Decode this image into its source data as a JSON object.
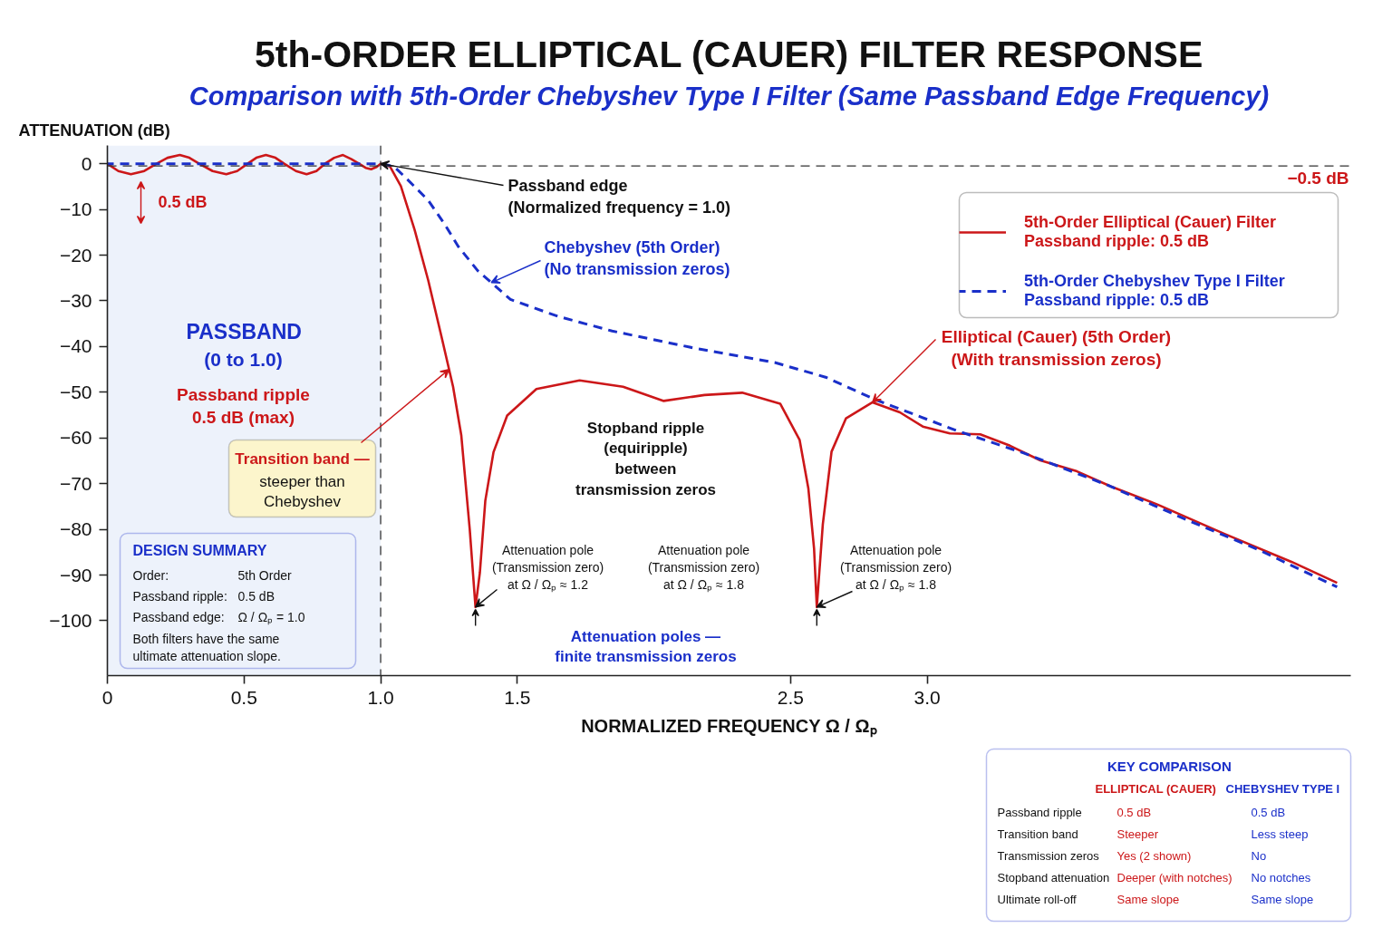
{
  "chart_data": {
    "type": "line",
    "title": "5th-ORDER ELLIPTICAL (CAUER) FILTER RESPONSE",
    "subtitle": "Comparison with 5th-Order Chebyshev Type I Filter (Same Passband Edge Frequency)",
    "xlabel": "NORMALIZED FREQUENCY Ω / Ωₚ",
    "ylabel": "ATTENUATION (dB)",
    "xlim": [
      0,
      4.55
    ],
    "ylim": [
      -112,
      4
    ],
    "xticks": [
      0,
      0.5,
      {
        "value": 1,
        "label": "1.0"
      },
      1.5,
      2.5,
      {
        "value": 3,
        "label": "3.0"
      }
    ],
    "yticks": [
      0,
      {
        "value": -10,
        "label": "−10"
      },
      {
        "value": -20,
        "label": "−20"
      },
      {
        "value": -30,
        "label": "−30"
      },
      {
        "value": -40,
        "label": "−40"
      },
      {
        "value": -50,
        "label": "−50"
      },
      {
        "value": -60,
        "label": "−60"
      },
      {
        "value": -70,
        "label": "−70"
      },
      {
        "value": -80,
        "label": "−80"
      },
      {
        "value": -90,
        "label": "−90"
      },
      {
        "value": -100,
        "label": "−100"
      }
    ],
    "legend": "top right",
    "series": [
      {
        "name": "5th-Order Elliptical (Cauer) Filter\nPassband ripple: 0.5 dB",
        "color": "#cc1719",
        "line_style": "solid",
        "x": [
          0,
          0.04,
          0.086,
          0.135,
          0.18,
          0.22,
          0.265,
          0.3,
          0.336,
          0.385,
          0.435,
          0.475,
          0.513,
          0.545,
          0.58,
          0.615,
          0.647,
          0.69,
          0.729,
          0.765,
          0.796,
          0.83,
          0.862,
          0.893,
          0.921,
          0.945,
          0.965,
          0.985,
          1.0,
          1.034,
          1.074,
          1.124,
          1.174,
          1.224,
          1.265,
          1.295,
          1.326,
          1.347,
          1.363,
          1.383,
          1.413,
          1.463,
          1.57,
          1.728,
          1.887,
          2.036,
          2.185,
          2.323,
          2.462,
          2.533,
          2.565,
          2.586,
          2.596,
          2.618,
          2.65,
          2.703,
          2.8,
          2.9,
          2.984,
          3.083,
          3.194,
          3.303,
          3.414,
          3.548,
          3.672,
          3.844,
          4.088,
          4.333,
          4.5
        ],
        "values": [
          0,
          -1.6,
          -2.3,
          -1.6,
          0,
          1.3,
          1.9,
          1.3,
          0,
          -1.6,
          -2.3,
          -1.6,
          0,
          1.3,
          1.9,
          1.3,
          0,
          -1.6,
          -2.3,
          -1.6,
          0,
          1.3,
          1.9,
          1.0,
          0,
          -0.9,
          -1.2,
          -0.7,
          0,
          -0.6,
          -4.9,
          -14.4,
          -25.5,
          -38.2,
          -48.8,
          -59.4,
          -80,
          -97,
          -89.5,
          -73.7,
          -63.1,
          -55.1,
          -49.3,
          -47.4,
          -48.8,
          -51.9,
          -50.6,
          -50.1,
          -52.5,
          -60.4,
          -71.0,
          -84.2,
          -97,
          -78.9,
          -63.0,
          -55.7,
          -52.2,
          -54.4,
          -57.5,
          -59.0,
          -59.2,
          -61.7,
          -64.9,
          -67.3,
          -70.6,
          -74.6,
          -81.0,
          -87.1,
          -91.7
        ]
      },
      {
        "name": "5th-Order Chebyshev Type I Filter\nPassband ripple: 0.5 dB",
        "color": "#1a2fc9",
        "line_style": "dashed",
        "x": [
          0,
          1.0,
          1.049,
          1.104,
          1.174,
          1.235,
          1.284,
          1.355,
          1.405,
          1.475,
          1.649,
          1.847,
          2.145,
          2.442,
          2.628,
          2.81,
          3.108,
          3.353,
          3.659,
          3.965,
          4.21,
          4.5
        ],
        "values": [
          0,
          0,
          -0.6,
          -3.8,
          -8.0,
          -13.3,
          -18.1,
          -23.4,
          -26.0,
          -29.7,
          -33.4,
          -36.6,
          -40.3,
          -43.5,
          -46.7,
          -51.6,
          -58.4,
          -63.3,
          -70.3,
          -78.3,
          -84.4,
          -92.6
        ]
      }
    ],
    "bands": [
      {
        "axis": "x",
        "from": 0,
        "to": 1,
        "label": "PASSBAND",
        "color": "#edf2fb"
      }
    ],
    "ref_lines": [
      {
        "axis": "x",
        "value": 1,
        "color": "#333333",
        "line_style": "dashed"
      },
      {
        "axis": "y",
        "value": -0.5,
        "label": "−0.5 dB",
        "color": "#333333",
        "line_style": "dashed"
      }
    ],
    "annotations": [
      {
        "text": "Passband edge\n(Normalized frequency = 1.0)",
        "x": 1,
        "y": 0
      },
      "0.5 dB",
      "(0 to 1.0)",
      "Passband ripple\n0.5 dB (max)",
      {
        "text": "Chebyshev (5th Order)\n(No transmission zeros)",
        "x": 1.405,
        "y": -26
      },
      {
        "text": "Transition band —",
        "x": 1.25,
        "y": -45
      },
      "steeper than\nChebyshev",
      "Stopband ripple\n(equiripple)\nbetween\ntransmission zeros",
      {
        "text": "Attenuation pole\n(Transmission zero)\nat Ω / Ωₚ ≈ 1.2",
        "x": 1.347,
        "y": -97
      },
      "Attenuation pole\n(Transmission zero)\nat Ω / Ωₚ ≈ 1.8",
      {
        "text": "Attenuation pole\n(Transmission zero)\nat Ω / Ωₚ ≈ 1.8",
        "x": 2.596,
        "y": -97
      },
      "Attenuation poles —\nfinite transmission zeros",
      {
        "text": "Elliptical (Cauer) (5th Order)\n(With transmission zeros)",
        "x": 2.8,
        "y": -52.2
      },
      "DESIGN SUMMARY",
      "Order:",
      "5th Order",
      "Passband ripple:",
      "0.5 dB",
      "Passband edge:",
      "Ω / Ωₚ = 1.0",
      "Both filters have the same\nultimate attenuation slope.",
      "KEY COMPARISON",
      "ELLIPTICAL (CAUER)",
      "CHEBYSHEV TYPE I",
      "Passband ripple",
      "0.5 dB",
      "0.5 dB",
      "Transition band",
      "Steeper",
      "Less steep",
      "Transmission zeros",
      "Yes (2 shown)",
      "No",
      "Stopband attenuation",
      "Deeper (with notches)",
      "No notches",
      "Ultimate roll-off",
      "Same slope",
      "Same slope"
    ]
  }
}
